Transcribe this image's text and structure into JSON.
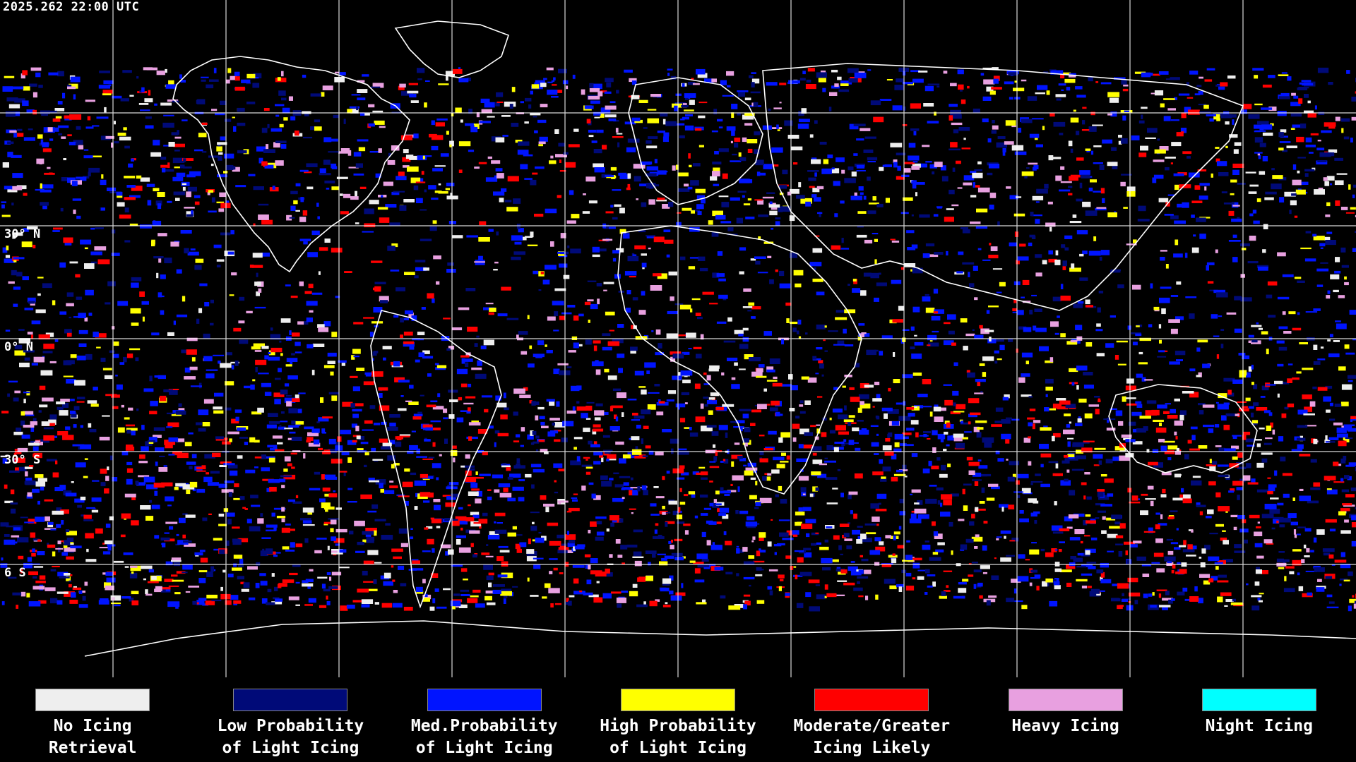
{
  "timestamp": "2025.262 22:00 UTC",
  "latitude_labels": [
    {
      "text": "30° N",
      "lat": 30
    },
    {
      "text": "0° N",
      "lat": 0
    },
    {
      "text": "30° S",
      "lat": -30
    },
    {
      "text": "6  S",
      "lat": -60
    }
  ],
  "grid": {
    "lon_step_deg": 15,
    "lat_step_deg": 30,
    "color": "#ffffff"
  },
  "legend": [
    {
      "line1": "No Icing",
      "line2": "Retrieval",
      "color": "#eeeeee"
    },
    {
      "line1": "Low Probability",
      "line2": "of Light Icing",
      "color": "#000a78"
    },
    {
      "line1": "Med.Probability",
      "line2": "of Light Icing",
      "color": "#0014ff"
    },
    {
      "line1": "High Probability",
      "line2": "of Light Icing",
      "color": "#ffff00"
    },
    {
      "line1": "Moderate/Greater",
      "line2": "Icing Likely",
      "color": "#ff0000"
    },
    {
      "line1": "Heavy Icing",
      "line2": "",
      "color": "#e8a0e0"
    },
    {
      "line1": "Night Icing",
      "line2": "",
      "color": "#00ffff"
    }
  ]
}
